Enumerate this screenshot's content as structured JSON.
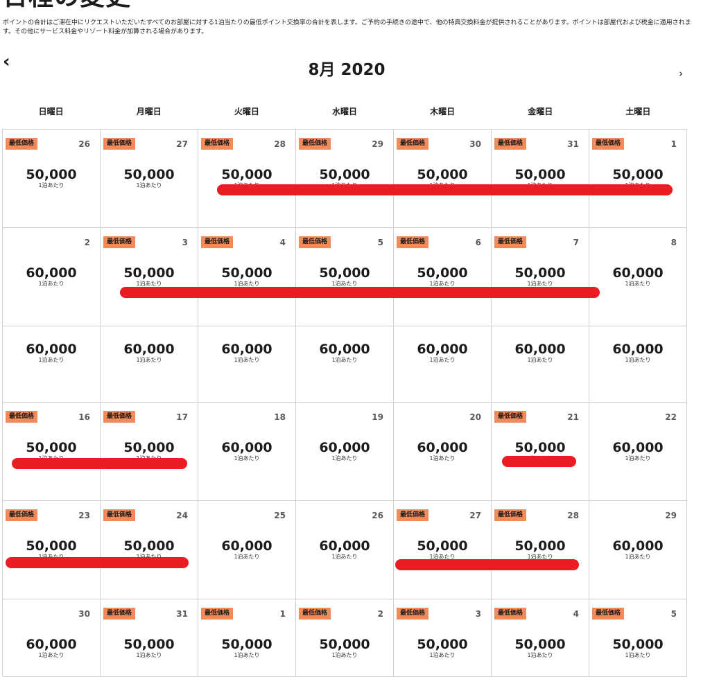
{
  "page": {
    "title": "日程の変更",
    "disclaimer": "ポイントの合計はご滞在中にリクエストいただいたすべてのお部屋に対する1泊当たりの最低ポイント交換率の合計を表します。ご予約の手続きの途中で、他の特典交換料金が提供されることがあります。ポイントは部屋代および税金に適用されます。その他にサービス料金やリゾート料金が加算される場合があります。"
  },
  "calendar": {
    "month_label": "8月 2020",
    "prev_icon": "chevron-left-icon",
    "next_icon": "chevron-right-icon",
    "weekdays": [
      "日曜日",
      "月曜日",
      "火曜日",
      "水曜日",
      "木曜日",
      "金曜日",
      "土曜日"
    ],
    "badge_label": "最低価格",
    "per_night_label": "1泊あたり",
    "badge_color": "#f28a5a",
    "weeks": [
      [
        {
          "day": "26",
          "price": "50,000",
          "lowest": true
        },
        {
          "day": "27",
          "price": "50,000",
          "lowest": true
        },
        {
          "day": "28",
          "price": "50,000",
          "lowest": true
        },
        {
          "day": "29",
          "price": "50,000",
          "lowest": true
        },
        {
          "day": "30",
          "price": "50,000",
          "lowest": true
        },
        {
          "day": "31",
          "price": "50,000",
          "lowest": true
        },
        {
          "day": "1",
          "price": "50,000",
          "lowest": true
        }
      ],
      [
        {
          "day": "2",
          "price": "60,000",
          "lowest": false
        },
        {
          "day": "3",
          "price": "50,000",
          "lowest": true
        },
        {
          "day": "4",
          "price": "50,000",
          "lowest": true
        },
        {
          "day": "5",
          "price": "50,000",
          "lowest": true
        },
        {
          "day": "6",
          "price": "50,000",
          "lowest": true
        },
        {
          "day": "7",
          "price": "50,000",
          "lowest": true
        },
        {
          "day": "8",
          "price": "60,000",
          "lowest": false
        }
      ],
      [
        {
          "day": "",
          "price": "60,000",
          "lowest": false
        },
        {
          "day": "",
          "price": "60,000",
          "lowest": false
        },
        {
          "day": "",
          "price": "60,000",
          "lowest": false
        },
        {
          "day": "",
          "price": "60,000",
          "lowest": false
        },
        {
          "day": "",
          "price": "60,000",
          "lowest": false
        },
        {
          "day": "",
          "price": "60,000",
          "lowest": false
        },
        {
          "day": "",
          "price": "60,000",
          "lowest": false
        }
      ],
      [
        {
          "day": "16",
          "price": "50,000",
          "lowest": true
        },
        {
          "day": "17",
          "price": "50,000",
          "lowest": true
        },
        {
          "day": "18",
          "price": "60,000",
          "lowest": false
        },
        {
          "day": "19",
          "price": "60,000",
          "lowest": false
        },
        {
          "day": "20",
          "price": "60,000",
          "lowest": false
        },
        {
          "day": "21",
          "price": "50,000",
          "lowest": true
        },
        {
          "day": "22",
          "price": "60,000",
          "lowest": false
        }
      ],
      [
        {
          "day": "23",
          "price": "50,000",
          "lowest": true
        },
        {
          "day": "24",
          "price": "50,000",
          "lowest": true
        },
        {
          "day": "25",
          "price": "60,000",
          "lowest": false
        },
        {
          "day": "26",
          "price": "60,000",
          "lowest": false
        },
        {
          "day": "27",
          "price": "50,000",
          "lowest": true
        },
        {
          "day": "28",
          "price": "50,000",
          "lowest": true
        },
        {
          "day": "29",
          "price": "60,000",
          "lowest": false
        }
      ],
      [
        {
          "day": "30",
          "price": "60,000",
          "lowest": false
        },
        {
          "day": "31",
          "price": "50,000",
          "lowest": true
        },
        {
          "day": "1",
          "price": "50,000",
          "lowest": true
        },
        {
          "day": "2",
          "price": "50,000",
          "lowest": true
        },
        {
          "day": "3",
          "price": "50,000",
          "lowest": true
        },
        {
          "day": "4",
          "price": "50,000",
          "lowest": true
        },
        {
          "day": "5",
          "price": "50,000",
          "lowest": true
        }
      ]
    ]
  },
  "annotations": {
    "strike_color": "#ec1c24"
  }
}
